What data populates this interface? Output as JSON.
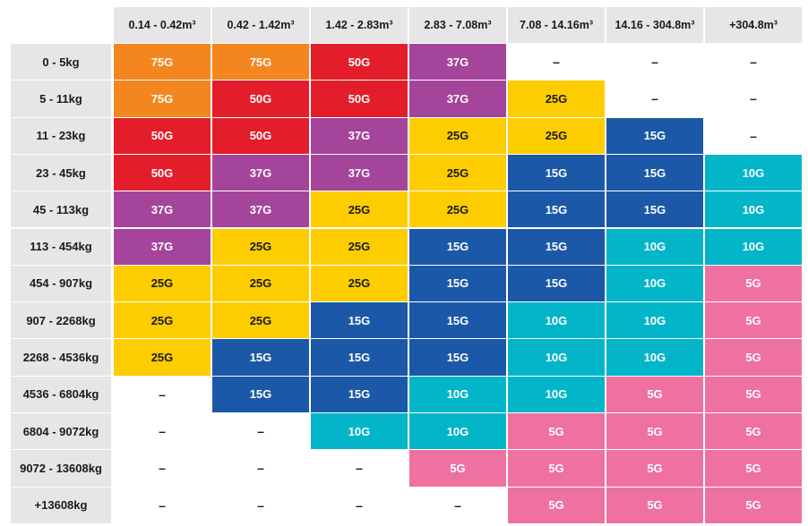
{
  "colors": {
    "75G": "#f4861f",
    "50G": "#e31e2a",
    "37G": "#a4449a",
    "25G": "#fdcd02",
    "15G": "#1b58a8",
    "10G": "#03b5c8",
    "5G": "#ef719f",
    "header_bg": "#e6e6e7"
  },
  "text_colors": {
    "75G": "#ffffff",
    "50G": "#ffffff",
    "37G": "#ffffff",
    "25G": "#1a1a1a",
    "15G": "#ffffff",
    "10G": "#ffffff",
    "5G": "#ffffff"
  },
  "table": {
    "columns": [
      "0.14 - 0.42m³",
      "0.42 - 1.42m³",
      "1.42 - 2.83m³",
      "2.83 - 7.08m³",
      "7.08 - 14.16m³",
      "14.16 - 304.8m³",
      "+304.8m³"
    ],
    "rows": [
      {
        "label": "0 - 5kg",
        "cells": [
          "75G",
          "75G",
          "50G",
          "37G",
          "–",
          "–",
          "–"
        ]
      },
      {
        "label": "5 - 11kg",
        "cells": [
          "75G",
          "50G",
          "50G",
          "37G",
          "25G",
          "–",
          "–"
        ]
      },
      {
        "label": "11 - 23kg",
        "cells": [
          "50G",
          "50G",
          "37G",
          "25G",
          "25G",
          "15G",
          "–"
        ]
      },
      {
        "label": "23 - 45kg",
        "cells": [
          "50G",
          "37G",
          "37G",
          "25G",
          "15G",
          "15G",
          "10G"
        ]
      },
      {
        "label": "45 - 113kg",
        "cells": [
          "37G",
          "37G",
          "25G",
          "25G",
          "15G",
          "15G",
          "10G"
        ]
      },
      {
        "label": "113 - 454kg",
        "cells": [
          "37G",
          "25G",
          "25G",
          "15G",
          "15G",
          "10G",
          "10G"
        ]
      },
      {
        "label": "454 - 907kg",
        "cells": [
          "25G",
          "25G",
          "25G",
          "15G",
          "15G",
          "10G",
          "5G"
        ]
      },
      {
        "label": "907 - 2268kg",
        "cells": [
          "25G",
          "25G",
          "15G",
          "15G",
          "10G",
          "10G",
          "5G"
        ]
      },
      {
        "label": "2268 - 4536kg",
        "cells": [
          "25G",
          "15G",
          "15G",
          "15G",
          "10G",
          "10G",
          "5G"
        ]
      },
      {
        "label": "4536 - 6804kg",
        "cells": [
          "–",
          "15G",
          "15G",
          "10G",
          "10G",
          "5G",
          "5G"
        ]
      },
      {
        "label": "6804 - 9072kg",
        "cells": [
          "–",
          "–",
          "10G",
          "10G",
          "5G",
          "5G",
          "5G"
        ]
      },
      {
        "label": "9072 - 13608kg",
        "cells": [
          "–",
          "–",
          "–",
          "5G",
          "5G",
          "5G",
          "5G"
        ]
      },
      {
        "label": "+13608kg",
        "cells": [
          "–",
          "–",
          "–",
          "–",
          "5G",
          "5G",
          "5G"
        ]
      }
    ]
  }
}
